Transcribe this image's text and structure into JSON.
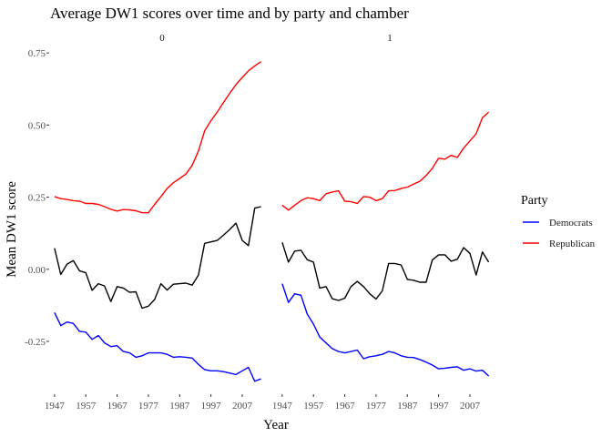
{
  "chart_data": {
    "type": "line",
    "title": "Average DW1 scores over time and by party and chamber",
    "xlabel": "Year",
    "ylabel": "Mean DW1 score",
    "xlim": [
      1945,
      2014
    ],
    "ylim": [
      -0.43,
      0.76
    ],
    "x_ticks": [
      1947,
      1957,
      1967,
      1977,
      1987,
      1997,
      2007
    ],
    "y_ticks": [
      -0.25,
      0.0,
      0.25,
      0.5,
      0.75
    ],
    "y_tick_labels": [
      "-0.25",
      "0.00",
      "0.25",
      "0.50",
      "0.75"
    ],
    "grid": false,
    "legend": {
      "title": "Party",
      "placement": "right",
      "entries": [
        {
          "name": "Democrats",
          "color": "#0000ff"
        },
        {
          "name": "Republican",
          "color": "#ff0000"
        }
      ]
    },
    "panels": [
      {
        "label": "0",
        "series": [
          {
            "name": "Republican",
            "color": "#ff0000",
            "x": [
              1947,
              1949,
              1951,
              1953,
              1955,
              1957,
              1959,
              1961,
              1963,
              1965,
              1967,
              1969,
              1971,
              1973,
              1975,
              1977,
              1979,
              1981,
              1983,
              1985,
              1987,
              1989,
              1991,
              1993,
              1995,
              1997,
              1999,
              2001,
              2003,
              2005,
              2007,
              2009,
              2011,
              2013
            ],
            "y": [
              0.252,
              0.245,
              0.242,
              0.238,
              0.236,
              0.228,
              0.228,
              0.225,
              0.217,
              0.208,
              0.202,
              0.207,
              0.206,
              0.203,
              0.196,
              0.196,
              0.225,
              0.252,
              0.28,
              0.3,
              0.315,
              0.33,
              0.36,
              0.41,
              0.48,
              0.515,
              0.545,
              0.578,
              0.61,
              0.64,
              0.665,
              0.688,
              0.705,
              0.72
            ]
          },
          {
            "color": "#000000",
            "x": [
              1947,
              1949,
              1951,
              1953,
              1955,
              1957,
              1959,
              1961,
              1963,
              1965,
              1967,
              1969,
              1971,
              1973,
              1975,
              1977,
              1979,
              1981,
              1983,
              1985,
              1987,
              1989,
              1991,
              1993,
              1995,
              1997,
              1999,
              2001,
              2003,
              2005,
              2007,
              2009,
              2011,
              2013
            ],
            "y": [
              0.073,
              -0.018,
              0.018,
              0.03,
              -0.005,
              -0.012,
              -0.073,
              -0.05,
              -0.058,
              -0.112,
              -0.06,
              -0.065,
              -0.08,
              -0.078,
              -0.135,
              -0.128,
              -0.105,
              -0.05,
              -0.072,
              -0.052,
              -0.05,
              -0.048,
              -0.055,
              -0.02,
              0.09,
              0.095,
              0.1,
              0.118,
              0.138,
              0.16,
              0.1,
              0.082,
              0.212,
              0.217
            ]
          },
          {
            "name": "Democrats",
            "color": "#0000ff",
            "x": [
              1947,
              1949,
              1951,
              1953,
              1955,
              1957,
              1959,
              1961,
              1963,
              1965,
              1967,
              1969,
              1971,
              1973,
              1975,
              1977,
              1979,
              1981,
              1983,
              1985,
              1987,
              1989,
              1991,
              1993,
              1995,
              1997,
              1999,
              2001,
              2003,
              2005,
              2007,
              2009,
              2011,
              2013
            ],
            "y": [
              -0.15,
              -0.195,
              -0.183,
              -0.188,
              -0.215,
              -0.218,
              -0.243,
              -0.23,
              -0.255,
              -0.268,
              -0.265,
              -0.285,
              -0.29,
              -0.305,
              -0.3,
              -0.29,
              -0.29,
              -0.29,
              -0.295,
              -0.305,
              -0.303,
              -0.305,
              -0.308,
              -0.33,
              -0.348,
              -0.352,
              -0.352,
              -0.355,
              -0.36,
              -0.365,
              -0.352,
              -0.34,
              -0.388,
              -0.38
            ]
          }
        ]
      },
      {
        "label": "1",
        "series": [
          {
            "name": "Republican",
            "color": "#ff0000",
            "x": [
              1947,
              1949,
              1951,
              1953,
              1955,
              1957,
              1959,
              1961,
              1963,
              1965,
              1967,
              1969,
              1971,
              1973,
              1975,
              1977,
              1979,
              1981,
              1983,
              1985,
              1987,
              1989,
              1991,
              1993,
              1995,
              1997,
              1999,
              2001,
              2003,
              2005,
              2007,
              2009,
              2011,
              2013
            ],
            "y": [
              0.222,
              0.205,
              0.222,
              0.238,
              0.248,
              0.245,
              0.238,
              0.262,
              0.268,
              0.272,
              0.236,
              0.234,
              0.228,
              0.252,
              0.25,
              0.238,
              0.245,
              0.272,
              0.273,
              0.28,
              0.285,
              0.295,
              0.305,
              0.325,
              0.35,
              0.385,
              0.382,
              0.395,
              0.388,
              0.42,
              0.445,
              0.47,
              0.525,
              0.545
            ]
          },
          {
            "color": "#000000",
            "x": [
              1947,
              1949,
              1951,
              1953,
              1955,
              1957,
              1959,
              1961,
              1963,
              1965,
              1967,
              1969,
              1971,
              1973,
              1975,
              1977,
              1979,
              1981,
              1983,
              1985,
              1987,
              1989,
              1991,
              1993,
              1995,
              1997,
              1999,
              2001,
              2003,
              2005,
              2007,
              2009,
              2011,
              2013
            ],
            "y": [
              0.093,
              0.025,
              0.063,
              0.066,
              0.033,
              0.025,
              -0.065,
              -0.06,
              -0.102,
              -0.108,
              -0.1,
              -0.06,
              -0.042,
              -0.06,
              -0.085,
              -0.103,
              -0.075,
              0.02,
              0.02,
              0.015,
              -0.035,
              -0.038,
              -0.045,
              -0.045,
              0.032,
              0.05,
              0.05,
              0.028,
              0.035,
              0.075,
              0.055,
              -0.02,
              0.06,
              0.025
            ]
          },
          {
            "name": "Democrats",
            "color": "#0000ff",
            "x": [
              1947,
              1949,
              1951,
              1953,
              1955,
              1957,
              1959,
              1961,
              1963,
              1965,
              1967,
              1969,
              1971,
              1973,
              1975,
              1977,
              1979,
              1981,
              1983,
              1985,
              1987,
              1989,
              1991,
              1993,
              1995,
              1997,
              1999,
              2001,
              2003,
              2005,
              2007,
              2009,
              2011,
              2013
            ],
            "y": [
              -0.05,
              -0.115,
              -0.085,
              -0.09,
              -0.155,
              -0.19,
              -0.235,
              -0.255,
              -0.275,
              -0.285,
              -0.29,
              -0.285,
              -0.28,
              -0.31,
              -0.303,
              -0.3,
              -0.295,
              -0.285,
              -0.29,
              -0.3,
              -0.305,
              -0.306,
              -0.313,
              -0.322,
              -0.332,
              -0.345,
              -0.343,
              -0.34,
              -0.338,
              -0.35,
              -0.345,
              -0.353,
              -0.35,
              -0.37
            ]
          }
        ]
      }
    ]
  }
}
